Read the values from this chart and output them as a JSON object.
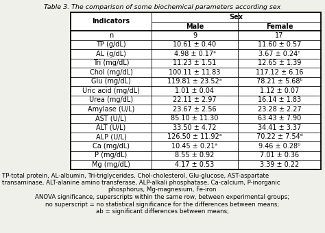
{
  "title": "Table 3. The comparison of some biochemical parameters according sex",
  "rows": [
    [
      "n",
      "9",
      "17"
    ],
    [
      "TP (g/dL)",
      "10.61 ± 0.40",
      "11.60 ± 0.57"
    ],
    [
      "AL (g/dL)",
      "4.98 ± 0.17ᵃ",
      "3.67 ± 0.24ᶜ"
    ],
    [
      "Tri (mg/dL)",
      "11.23 ± 1.51",
      "12.65 ± 1.39"
    ],
    [
      "Chol (mg/dL)",
      "100.11 ± 11.83",
      "117.12 ± 6.16"
    ],
    [
      "Glu (mg/dL)",
      "119.81 ± 23.52ᵃ",
      "78.21 ± 5.68ᵇ"
    ],
    [
      "Uric acid (mg/dL)",
      "1.01 ± 0.04",
      "1.12 ± 0.07"
    ],
    [
      "Urea (mg/dL)",
      "22.11 ± 2.97",
      "16.14 ± 1.83"
    ],
    [
      "Amylase (U/L)",
      "23.67 ± 2.56",
      "23.28 ± 2.27"
    ],
    [
      "AST (U/L)",
      "85.10 ± 11.30",
      "63.43 ± 7.90"
    ],
    [
      "ALT (U/L)",
      "33.50 ± 4.72",
      "34.41 ± 3.37"
    ],
    [
      "ALP (U/L)",
      "126.50 ± 11.92ᵃ",
      "70.22 ± 7.54ᵈ"
    ],
    [
      "Ca (mg/dL)",
      "10.45 ± 0.21ᵃ",
      "9.46 ± 0.28ᵇ"
    ],
    [
      "P (mg/dL)",
      "8.55 ± 0.92",
      "7.01 ± 0.36"
    ],
    [
      "Mg (mg/dL)",
      "4.17 ± 0.53",
      "3.39 ± 0.22"
    ]
  ],
  "footnote_lines": [
    [
      "left",
      "TP-total protein, AL-albumin, Tri-triglycerides, Chol-cholesterol, Glu-glucose, AST-aspartate"
    ],
    [
      "left",
      "transaminase, ALT-alanine amino transferase, ALP-alkali phosphatase, Ca-calcium, P-inorganic"
    ],
    [
      "center",
      "phosphorus, Mg-magnesium, Fe-iron"
    ],
    [
      "center",
      "ANOVA significance, superscripts within the same row, between experimental groups;"
    ],
    [
      "center",
      "no superscript = no statistical significance for the differences between means;"
    ],
    [
      "center",
      "ab = significant differences between means;"
    ]
  ],
  "bg_color": "#f0f0eb",
  "font_size": 7.0,
  "footnote_size": 6.2,
  "title_size": 6.8,
  "title_style": "italic"
}
